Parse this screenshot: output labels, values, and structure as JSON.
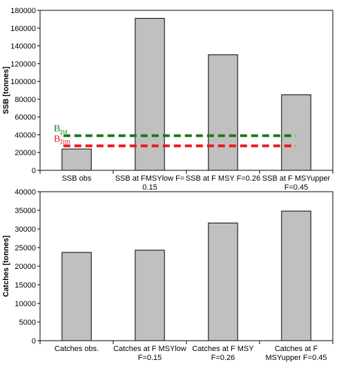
{
  "chart_data": [
    {
      "type": "bar",
      "ylabel": "SSB [tonnes]",
      "ylim": [
        0,
        180000
      ],
      "yticks": [
        0,
        20000,
        40000,
        60000,
        80000,
        100000,
        120000,
        140000,
        160000,
        180000
      ],
      "categories": [
        [
          "SSB obs"
        ],
        [
          "SSB at FMSYlow F=",
          "0.15"
        ],
        [
          "SSB at F MSY F=0.26"
        ],
        [
          "SSB at F MSYupper",
          "F=0.45"
        ]
      ],
      "values": [
        24000,
        171000,
        130000,
        85000
      ],
      "bar_color": "#c0c0c0",
      "reference_lines": [
        {
          "label_main": "B",
          "label_sub": "pa",
          "value": 39000,
          "color": "#1a7a1a"
        },
        {
          "label_main": "B",
          "label_sub": "lim",
          "value": 27500,
          "color": "#e81a1a"
        }
      ]
    },
    {
      "type": "bar",
      "ylabel": "Catches [tonnes]",
      "ylim": [
        0,
        40000
      ],
      "yticks": [
        0,
        5000,
        10000,
        15000,
        20000,
        25000,
        30000,
        35000,
        40000
      ],
      "categories": [
        [
          "Catches obs."
        ],
        [
          "Catches at F MSYlow",
          "F=0.15"
        ],
        [
          "Catches at F MSY",
          "F=0.26"
        ],
        [
          "Catches at F",
          "MSYupper F=0.45"
        ]
      ],
      "values": [
        23700,
        24300,
        31600,
        34800
      ],
      "bar_color": "#c0c0c0"
    }
  ]
}
